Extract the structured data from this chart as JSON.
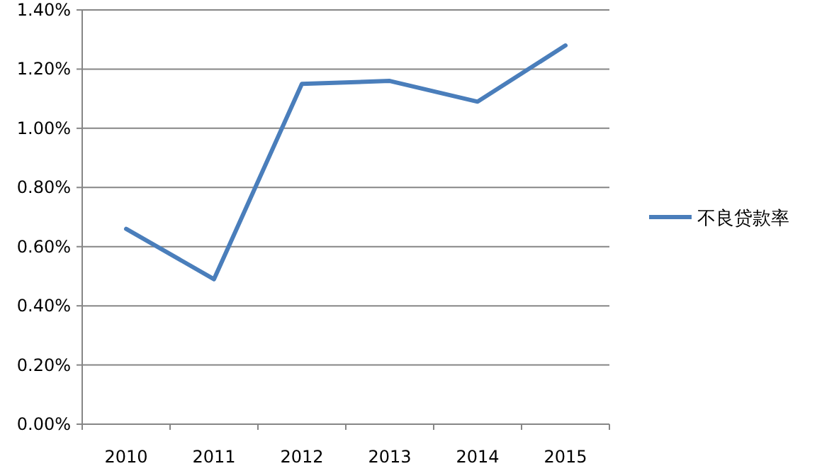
{
  "chart_data": {
    "type": "line",
    "categories": [
      "2010",
      "2011",
      "2012",
      "2013",
      "2014",
      "2015"
    ],
    "series": [
      {
        "name": "不良贷款率",
        "color": "#4a7ebb",
        "values": [
          0.66,
          0.49,
          1.15,
          1.16,
          1.09,
          1.28
        ]
      }
    ],
    "ylim": [
      0,
      1.4
    ],
    "yticks": [
      {
        "value": 0,
        "label": "0.00%"
      },
      {
        "value": 0.2,
        "label": "0.20%"
      },
      {
        "value": 0.4,
        "label": "0.40%"
      },
      {
        "value": 0.6,
        "label": "0.60%"
      },
      {
        "value": 0.8,
        "label": "0.80%"
      },
      {
        "value": 1.0,
        "label": "1.00%"
      },
      {
        "value": 1.2,
        "label": "1.20%"
      },
      {
        "value": 1.4,
        "label": "1.40%"
      }
    ],
    "grid": "y",
    "legend": "right"
  }
}
